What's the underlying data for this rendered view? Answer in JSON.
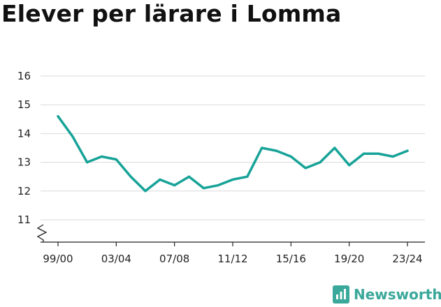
{
  "title": "Elever per lärare i Lomma",
  "brand": {
    "name": "Newsworthy",
    "color": "#3aa89a"
  },
  "chart_data": {
    "type": "line",
    "title": "Elever per lärare i Lomma",
    "xlabel": "",
    "ylabel": "",
    "ylim": [
      10.7,
      16
    ],
    "y_ticks": [
      11,
      12,
      13,
      14,
      15,
      16
    ],
    "axis_break": true,
    "grid": true,
    "x": [
      "99/00",
      "00/01",
      "01/02",
      "02/03",
      "03/04",
      "04/05",
      "05/06",
      "06/07",
      "07/08",
      "08/09",
      "09/10",
      "10/11",
      "11/12",
      "12/13",
      "13/14",
      "14/15",
      "15/16",
      "16/17",
      "17/18",
      "18/19",
      "19/20",
      "20/21",
      "21/22",
      "22/23",
      "23/24"
    ],
    "x_tick_labels": [
      "99/00",
      "03/04",
      "07/08",
      "11/12",
      "15/16",
      "19/20",
      "23/24"
    ],
    "series": [
      {
        "color": "#17a398",
        "values": [
          14.6,
          13.9,
          13.0,
          13.2,
          13.1,
          12.5,
          12.0,
          12.4,
          12.2,
          12.5,
          12.1,
          12.2,
          12.4,
          12.5,
          13.5,
          13.4,
          13.2,
          12.8,
          13.0,
          13.5,
          12.9,
          13.3,
          13.3,
          13.2,
          13.4
        ]
      }
    ]
  }
}
